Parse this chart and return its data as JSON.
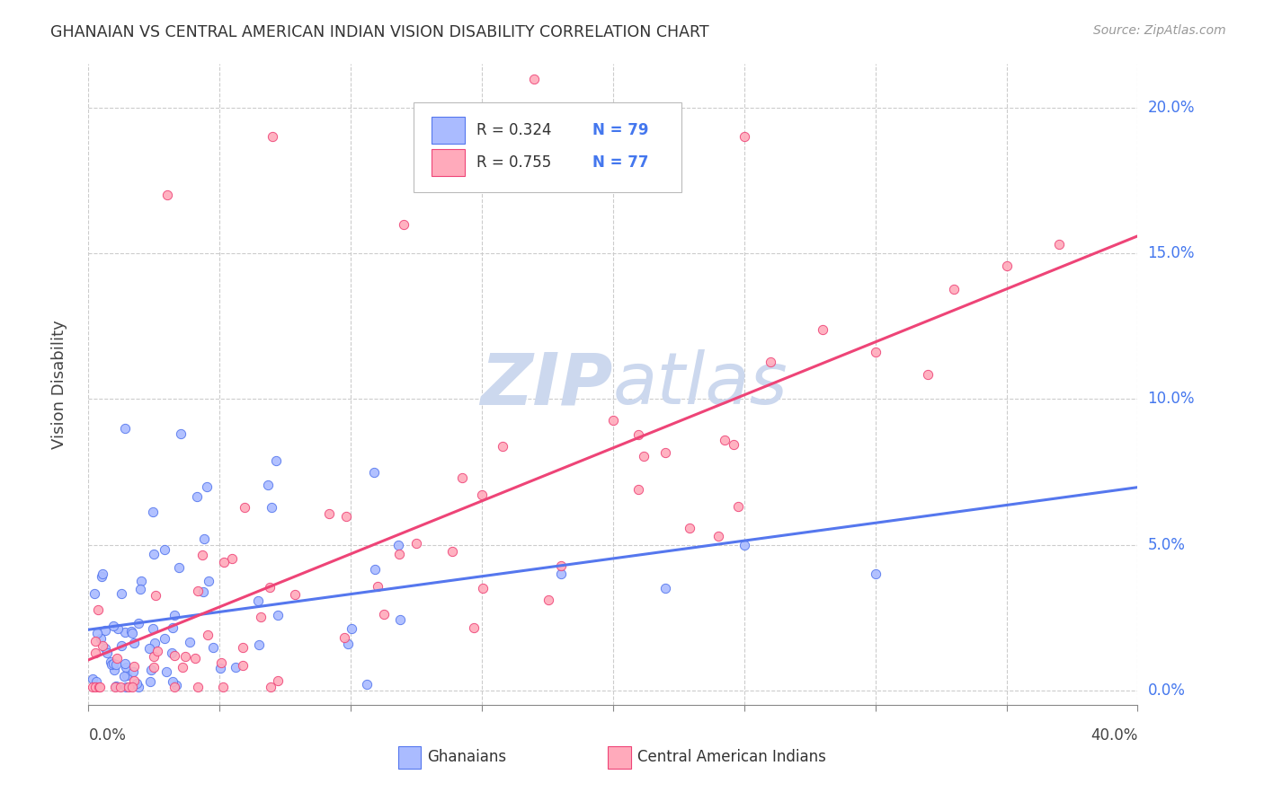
{
  "title": "GHANAIAN VS CENTRAL AMERICAN INDIAN VISION DISABILITY CORRELATION CHART",
  "source": "Source: ZipAtlas.com",
  "ylabel": "Vision Disability",
  "xlim": [
    0.0,
    0.4
  ],
  "ylim": [
    -0.005,
    0.215
  ],
  "ghanaian_R": "0.324",
  "ghanaian_N": "79",
  "central_american_R": "0.755",
  "central_american_N": "77",
  "scatter_blue_color": "#aabbff",
  "scatter_pink_color": "#ffaabb",
  "line_blue_color": "#5577ee",
  "line_pink_color": "#ee4477",
  "watermark_color": "#ccd8ee",
  "background_color": "#ffffff",
  "ytick_vals": [
    0.0,
    0.05,
    0.1,
    0.15,
    0.2
  ],
  "ytick_labels": [
    "0.0%",
    "5.0%",
    "10.0%",
    "15.0%",
    "20.0%"
  ],
  "xtick_vals": [
    0.0,
    0.05,
    0.1,
    0.15,
    0.2,
    0.25,
    0.3,
    0.35,
    0.4
  ],
  "bottom_xtick_labels": [
    "0.0%",
    "",
    "",
    "",
    "",
    "",
    "",
    "",
    "40.0%"
  ]
}
